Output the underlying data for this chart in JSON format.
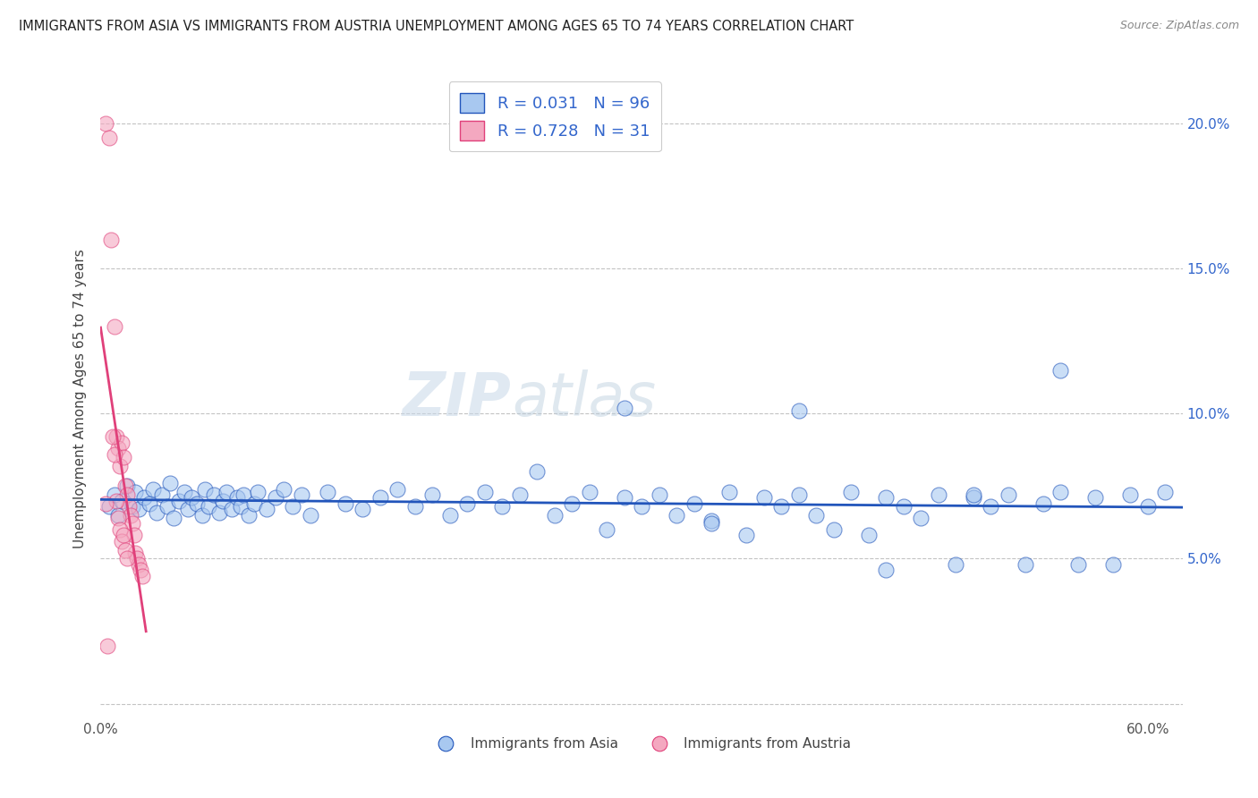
{
  "title": "IMMIGRANTS FROM ASIA VS IMMIGRANTS FROM AUSTRIA UNEMPLOYMENT AMONG AGES 65 TO 74 YEARS CORRELATION CHART",
  "source": "Source: ZipAtlas.com",
  "ylabel": "Unemployment Among Ages 65 to 74 years",
  "xlim": [
    0.0,
    0.62
  ],
  "ylim": [
    -0.005,
    0.215
  ],
  "xtick_pos": [
    0.0,
    0.1,
    0.2,
    0.3,
    0.4,
    0.5,
    0.6
  ],
  "xtick_labels": [
    "0.0%",
    "",
    "",
    "",
    "",
    "",
    "60.0%"
  ],
  "ytick_pos": [
    0.0,
    0.05,
    0.1,
    0.15,
    0.2
  ],
  "ytick_labels": [
    "",
    "5.0%",
    "10.0%",
    "15.0%",
    "20.0%"
  ],
  "asia_R": 0.031,
  "asia_N": 96,
  "austria_R": 0.728,
  "austria_N": 31,
  "asia_color": "#a8c8f0",
  "austria_color": "#f4a8c0",
  "asia_line_color": "#2255bb",
  "austria_line_color": "#e0407a",
  "legend_text_color": "#3366cc",
  "asia_x": [
    0.005,
    0.008,
    0.01,
    0.012,
    0.015,
    0.018,
    0.02,
    0.022,
    0.025,
    0.028,
    0.03,
    0.032,
    0.035,
    0.038,
    0.04,
    0.042,
    0.045,
    0.048,
    0.05,
    0.052,
    0.055,
    0.058,
    0.06,
    0.062,
    0.065,
    0.068,
    0.07,
    0.072,
    0.075,
    0.078,
    0.08,
    0.082,
    0.085,
    0.088,
    0.09,
    0.095,
    0.1,
    0.105,
    0.11,
    0.115,
    0.12,
    0.13,
    0.14,
    0.15,
    0.16,
    0.17,
    0.18,
    0.19,
    0.2,
    0.21,
    0.22,
    0.23,
    0.24,
    0.25,
    0.26,
    0.27,
    0.28,
    0.29,
    0.3,
    0.31,
    0.32,
    0.33,
    0.34,
    0.35,
    0.36,
    0.37,
    0.38,
    0.39,
    0.4,
    0.41,
    0.42,
    0.43,
    0.44,
    0.45,
    0.46,
    0.47,
    0.48,
    0.49,
    0.5,
    0.51,
    0.52,
    0.53,
    0.54,
    0.55,
    0.56,
    0.57,
    0.58,
    0.59,
    0.6,
    0.61,
    0.3,
    0.35,
    0.4,
    0.45,
    0.5,
    0.55
  ],
  "asia_y": [
    0.068,
    0.072,
    0.065,
    0.07,
    0.075,
    0.068,
    0.073,
    0.067,
    0.071,
    0.069,
    0.074,
    0.066,
    0.072,
    0.068,
    0.076,
    0.064,
    0.07,
    0.073,
    0.067,
    0.071,
    0.069,
    0.065,
    0.074,
    0.068,
    0.072,
    0.066,
    0.07,
    0.073,
    0.067,
    0.071,
    0.068,
    0.072,
    0.065,
    0.069,
    0.073,
    0.067,
    0.071,
    0.074,
    0.068,
    0.072,
    0.065,
    0.073,
    0.069,
    0.067,
    0.071,
    0.074,
    0.068,
    0.072,
    0.065,
    0.069,
    0.073,
    0.068,
    0.072,
    0.08,
    0.065,
    0.069,
    0.073,
    0.06,
    0.071,
    0.068,
    0.072,
    0.065,
    0.069,
    0.063,
    0.073,
    0.058,
    0.071,
    0.068,
    0.072,
    0.065,
    0.06,
    0.073,
    0.058,
    0.071,
    0.068,
    0.064,
    0.072,
    0.048,
    0.071,
    0.068,
    0.072,
    0.048,
    0.069,
    0.073,
    0.048,
    0.071,
    0.048,
    0.072,
    0.068,
    0.073,
    0.102,
    0.062,
    0.101,
    0.046,
    0.072,
    0.115
  ],
  "austria_x": [
    0.003,
    0.005,
    0.006,
    0.008,
    0.009,
    0.01,
    0.011,
    0.012,
    0.013,
    0.014,
    0.015,
    0.016,
    0.017,
    0.018,
    0.019,
    0.02,
    0.021,
    0.022,
    0.023,
    0.024,
    0.007,
    0.008,
    0.009,
    0.01,
    0.011,
    0.012,
    0.013,
    0.014,
    0.015,
    0.003,
    0.004
  ],
  "austria_y": [
    0.2,
    0.195,
    0.16,
    0.13,
    0.092,
    0.088,
    0.082,
    0.09,
    0.085,
    0.075,
    0.072,
    0.068,
    0.065,
    0.062,
    0.058,
    0.052,
    0.05,
    0.048,
    0.046,
    0.044,
    0.092,
    0.086,
    0.07,
    0.064,
    0.06,
    0.056,
    0.058,
    0.053,
    0.05,
    0.069,
    0.02
  ]
}
